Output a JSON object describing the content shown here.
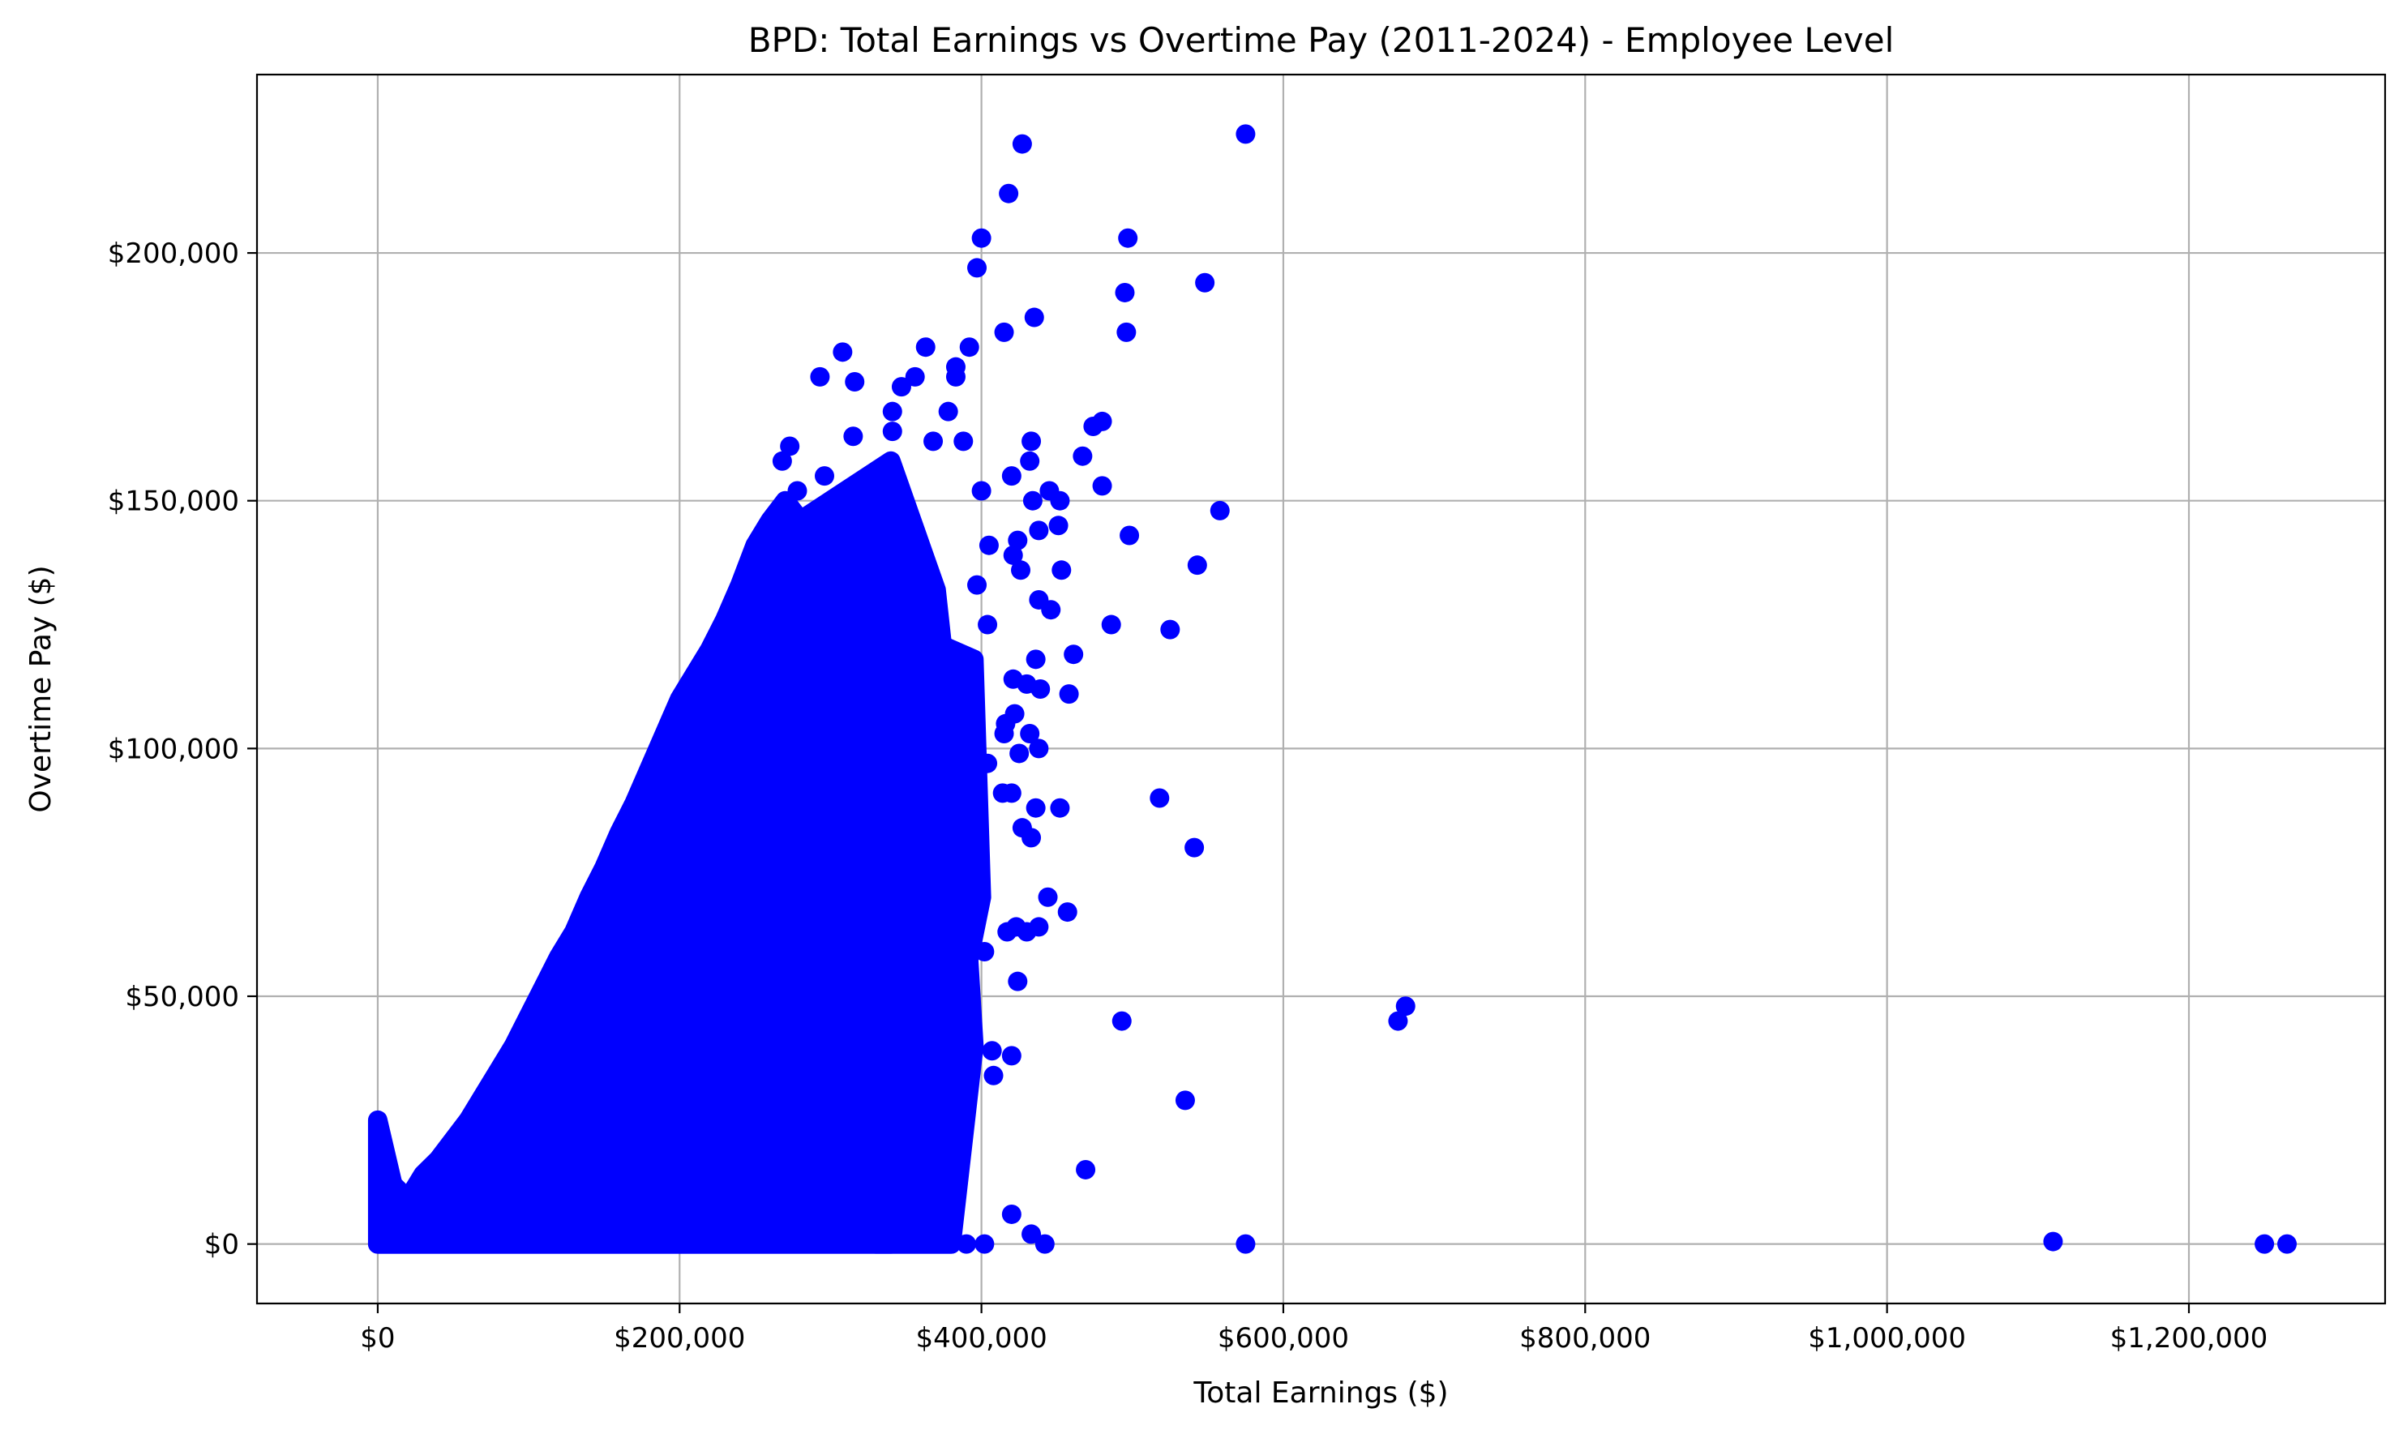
{
  "chart_data": {
    "type": "scatter",
    "title": "BPD: Total Earnings vs Overtime Pay (2011-2024) - Employee Level",
    "xlabel": "Total Earnings ($)",
    "ylabel": "Overtime Pay ($)",
    "xlim": [
      -80000,
      1330000
    ],
    "ylim": [
      -12000,
      236000
    ],
    "xticks": [
      0,
      200000,
      400000,
      600000,
      800000,
      1000000,
      1200000
    ],
    "xtick_labels": [
      "$0",
      "$200,000",
      "$400,000",
      "$600,000",
      "$800,000",
      "$1,000,000",
      "$1,200,000"
    ],
    "yticks": [
      0,
      50000,
      100000,
      150000,
      200000
    ],
    "ytick_labels": [
      "$0",
      "$50,000",
      "$100,000",
      "$150,000",
      "$200,000"
    ],
    "grid": true,
    "marker_color": "#0000ff",
    "series": [
      {
        "points": [
          [
            575000,
            224000
          ],
          [
            427000,
            222000
          ],
          [
            418000,
            212000
          ],
          [
            400000,
            203000
          ],
          [
            497000,
            203000
          ],
          [
            397000,
            197000
          ],
          [
            548000,
            194000
          ],
          [
            495000,
            192000
          ],
          [
            435000,
            187000
          ],
          [
            496000,
            184000
          ],
          [
            415000,
            184000
          ],
          [
            392000,
            181000
          ],
          [
            308000,
            180000
          ],
          [
            363000,
            181000
          ],
          [
            383000,
            177000
          ],
          [
            356000,
            175000
          ],
          [
            293000,
            175000
          ],
          [
            316000,
            174000
          ],
          [
            347000,
            173000
          ],
          [
            383000,
            175000
          ],
          [
            378000,
            168000
          ],
          [
            341000,
            168000
          ],
          [
            480000,
            166000
          ],
          [
            474000,
            165000
          ],
          [
            341000,
            164000
          ],
          [
            315000,
            163000
          ],
          [
            368000,
            162000
          ],
          [
            433000,
            162000
          ],
          [
            388000,
            162000
          ],
          [
            273000,
            161000
          ],
          [
            467000,
            159000
          ],
          [
            432000,
            158000
          ],
          [
            268000,
            158000
          ],
          [
            296000,
            155000
          ],
          [
            420000,
            155000
          ],
          [
            480000,
            153000
          ],
          [
            400000,
            152000
          ],
          [
            445000,
            152000
          ],
          [
            278000,
            152000
          ],
          [
            452000,
            150000
          ],
          [
            434000,
            150000
          ],
          [
            558000,
            148000
          ],
          [
            424000,
            142000
          ],
          [
            451000,
            145000
          ],
          [
            438000,
            144000
          ],
          [
            498000,
            143000
          ],
          [
            405000,
            141000
          ],
          [
            421000,
            139000
          ],
          [
            543000,
            137000
          ],
          [
            426000,
            136000
          ],
          [
            453000,
            136000
          ],
          [
            397000,
            133000
          ],
          [
            438000,
            130000
          ],
          [
            446000,
            128000
          ],
          [
            486000,
            125000
          ],
          [
            525000,
            124000
          ],
          [
            404000,
            125000
          ],
          [
            461000,
            119000
          ],
          [
            436000,
            118000
          ],
          [
            421000,
            114000
          ],
          [
            430000,
            113000
          ],
          [
            439000,
            112000
          ],
          [
            458000,
            111000
          ],
          [
            422000,
            107000
          ],
          [
            416000,
            105000
          ],
          [
            415000,
            103000
          ],
          [
            432000,
            103000
          ],
          [
            438000,
            100000
          ],
          [
            425000,
            99000
          ],
          [
            404000,
            97000
          ],
          [
            420000,
            91000
          ],
          [
            414000,
            91000
          ],
          [
            518000,
            90000
          ],
          [
            452000,
            88000
          ],
          [
            436000,
            88000
          ],
          [
            427000,
            84000
          ],
          [
            433000,
            82000
          ],
          [
            541000,
            80000
          ],
          [
            444000,
            70000
          ],
          [
            457000,
            67000
          ],
          [
            423000,
            64000
          ],
          [
            438000,
            64000
          ],
          [
            417000,
            63000
          ],
          [
            430000,
            63000
          ],
          [
            402000,
            59000
          ],
          [
            424000,
            53000
          ],
          [
            493000,
            45000
          ],
          [
            681000,
            48000
          ],
          [
            676000,
            45000
          ],
          [
            407000,
            39000
          ],
          [
            420000,
            38000
          ],
          [
            408000,
            34000
          ],
          [
            535000,
            29000
          ],
          [
            469000,
            15000
          ],
          [
            420000,
            6000
          ],
          [
            433000,
            2000
          ],
          [
            402000,
            0
          ],
          [
            442000,
            0
          ],
          [
            575000,
            0
          ],
          [
            1110000,
            500
          ],
          [
            1250000,
            0
          ],
          [
            1265000,
            0
          ],
          [
            390000,
            0
          ]
        ]
      },
      {
        "bands": [
          [
            [
              250000,
              140000
            ],
            [
              340000,
              158000
            ],
            [
              370000,
              132000
            ],
            [
              385000,
              90000
            ],
            [
              395000,
              40000
            ],
            [
              380000,
              0
            ],
            [
              330000,
              0
            ],
            [
              300000,
              60000
            ]
          ],
          [
            [
              320000,
              128000
            ],
            [
              395000,
              118000
            ],
            [
              400000,
              70000
            ],
            [
              380000,
              40000
            ],
            [
              345000,
              100000
            ]
          ]
        ],
        "ranges": [
          [
            0,
            0,
            25000
          ],
          [
            10000,
            0,
            12000
          ],
          [
            20000,
            0,
            9000
          ],
          [
            30000,
            0,
            14000
          ],
          [
            40000,
            0,
            17000
          ],
          [
            50000,
            0,
            21000
          ],
          [
            60000,
            0,
            25000
          ],
          [
            70000,
            0,
            30000
          ],
          [
            80000,
            0,
            35000
          ],
          [
            90000,
            0,
            40000
          ],
          [
            100000,
            0,
            46000
          ],
          [
            110000,
            0,
            52000
          ],
          [
            120000,
            0,
            58000
          ],
          [
            130000,
            0,
            63000
          ],
          [
            140000,
            0,
            70000
          ],
          [
            150000,
            0,
            76000
          ],
          [
            160000,
            0,
            83000
          ],
          [
            170000,
            0,
            89000
          ],
          [
            180000,
            0,
            96000
          ],
          [
            190000,
            0,
            103000
          ],
          [
            200000,
            0,
            110000
          ],
          [
            210000,
            0,
            115000
          ],
          [
            220000,
            0,
            120000
          ],
          [
            230000,
            0,
            126000
          ],
          [
            240000,
            0,
            133000
          ],
          [
            250000,
            0,
            141000
          ],
          [
            260000,
            0,
            146000
          ],
          [
            270000,
            0,
            150000
          ],
          [
            280000,
            0,
            146000
          ],
          [
            290000,
            0,
            140000
          ],
          [
            300000,
            0,
            134000
          ],
          [
            310000,
            0,
            130000
          ],
          [
            320000,
            0,
            125000
          ],
          [
            330000,
            0,
            118000
          ],
          [
            340000,
            0,
            110000
          ],
          [
            350000,
            5000,
            100000
          ],
          [
            360000,
            10000,
            90000
          ],
          [
            370000,
            20000,
            80000
          ],
          [
            380000,
            30000,
            65000
          ]
        ]
      }
    ]
  }
}
